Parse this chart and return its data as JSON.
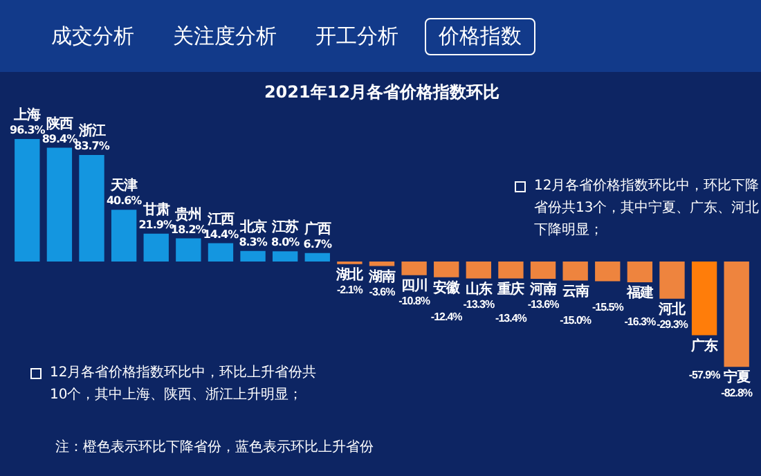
{
  "chart_data": {
    "type": "bar",
    "title": "2021年12月各省价格指数环比",
    "categories": [
      "上海",
      "陕西",
      "浙江",
      "天津",
      "甘肃",
      "贵州",
      "江西",
      "北京",
      "江苏",
      "广西",
      "湖北",
      "湖南",
      "四川",
      "安徽",
      "山东",
      "重庆",
      "河南",
      "云南",
      null,
      "福建",
      "河北",
      "广东",
      "宁夏"
    ],
    "values": [
      96.3,
      89.4,
      83.7,
      40.6,
      21.9,
      18.2,
      14.4,
      8.3,
      8.0,
      6.7,
      -2.1,
      -3.6,
      -10.8,
      -12.4,
      -13.3,
      -13.4,
      -13.6,
      -15.0,
      -15.5,
      -16.3,
      -29.3,
      -57.9,
      -82.8
    ],
    "colors": [
      "#1496e0",
      "#1496e0",
      "#1496e0",
      "#1496e0",
      "#1496e0",
      "#1496e0",
      "#1496e0",
      "#1496e0",
      "#1496e0",
      "#1496e0",
      "#ee843e",
      "#ee843e",
      "#ee843e",
      "#ee843e",
      "#ee843e",
      "#ee843e",
      "#ee843e",
      "#ee843e",
      "#ee843e",
      "#ee843e",
      "#ee843e",
      "#ff7d0a",
      "#ee843e"
    ],
    "value_labels": [
      "96.3%",
      "89.4%",
      "83.7%",
      "40.6%",
      "21.9%",
      "18.2%",
      "14.4%",
      "8.3%",
      "8.0%",
      "6.7%",
      "-2.1%",
      "-3.6%",
      "-10.8%",
      "-12.4%",
      "-13.3%",
      "-13.4%",
      "-13.6%",
      "-15.0%",
      "-15.5%",
      "-16.3%",
      "-29.3%",
      "-57.9%",
      "-82.8%"
    ],
    "tick_labels": false,
    "grid": false,
    "legend": false,
    "annotations": [
      "成交分析",
      "关注度分析",
      "开工分析",
      "价格指数",
      "12月各省价格指数环比中，环比上升省份共10个，其中上海、陕西、浙江上升明显；",
      "12月各省价格指数环比中，环比下降省份共13个，其中宁夏、广东、河北下降明显；",
      "注：橙色表示环比下降省份，蓝色表示环比上升省份"
    ]
  }
}
